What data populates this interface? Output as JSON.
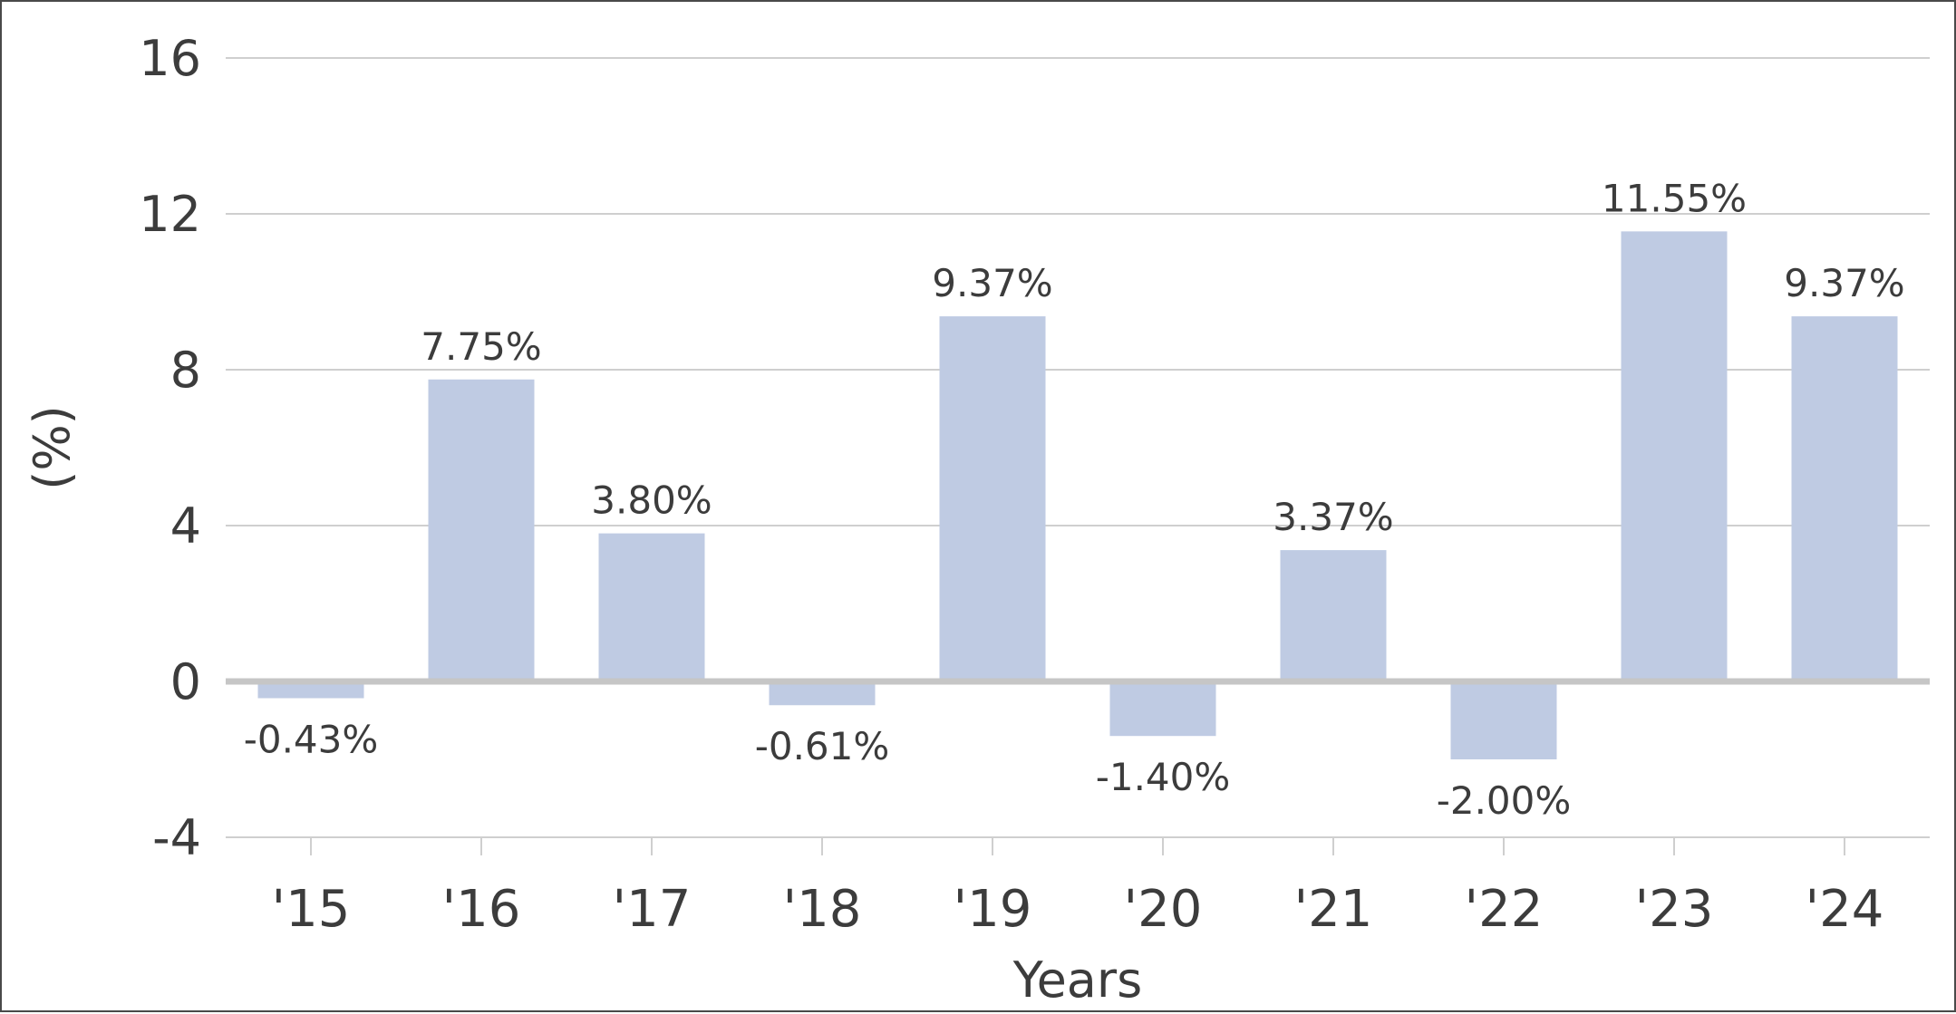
{
  "chart_data": {
    "type": "bar",
    "title": "",
    "xlabel": "Years",
    "ylabel": "(%)",
    "categories": [
      "'15",
      "'16",
      "'17",
      "'18",
      "'19",
      "'20",
      "'21",
      "'22",
      "'23",
      "'24"
    ],
    "values": [
      -0.43,
      7.75,
      3.8,
      -0.61,
      9.37,
      -1.4,
      3.37,
      -2.0,
      11.55,
      9.37
    ],
    "data_labels": [
      "-0.43%",
      "7.75%",
      "3.80%",
      "-0.61%",
      "9.37%",
      "-1.40%",
      "3.37%",
      "-2.00%",
      "11.55%",
      "9.37%"
    ],
    "yticks": [
      16,
      12,
      8,
      4,
      0,
      -4
    ],
    "ylim": [
      -4,
      16
    ],
    "grid": true,
    "legend": "none",
    "colors": {
      "bar": "#bfcbe3",
      "grid": "#cfcfcf",
      "zero_line": "#c6c6c6",
      "text": "#3c3c3c",
      "frame": "#4a4a4a"
    }
  }
}
